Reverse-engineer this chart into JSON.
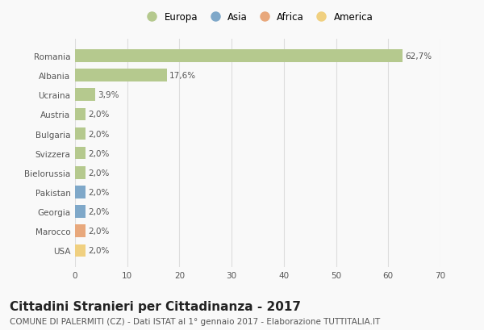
{
  "categories": [
    "Romania",
    "Albania",
    "Ucraina",
    "Austria",
    "Bulgaria",
    "Svizzera",
    "Bielorussia",
    "Pakistan",
    "Georgia",
    "Marocco",
    "USA"
  ],
  "values": [
    62.7,
    17.6,
    3.9,
    2.0,
    2.0,
    2.0,
    2.0,
    2.0,
    2.0,
    2.0,
    2.0
  ],
  "labels": [
    "62,7%",
    "17,6%",
    "3,9%",
    "2,0%",
    "2,0%",
    "2,0%",
    "2,0%",
    "2,0%",
    "2,0%",
    "2,0%",
    "2,0%"
  ],
  "colors": [
    "#b5c98e",
    "#b5c98e",
    "#b5c98e",
    "#b5c98e",
    "#b5c98e",
    "#b5c98e",
    "#b5c98e",
    "#7fa8c9",
    "#7fa8c9",
    "#e8a87c",
    "#f0d080"
  ],
  "continent_labels": [
    "Europa",
    "Asia",
    "Africa",
    "America"
  ],
  "continent_colors": [
    "#b5c98e",
    "#7fa8c9",
    "#e8a87c",
    "#f0d080"
  ],
  "xlim": [
    0,
    70
  ],
  "xticks": [
    0,
    10,
    20,
    30,
    40,
    50,
    60,
    70
  ],
  "title": "Cittadini Stranieri per Cittadinanza - 2017",
  "subtitle": "COMUNE DI PALERMITI (CZ) - Dati ISTAT al 1° gennaio 2017 - Elaborazione TUTTITALIA.IT",
  "bg_color": "#f9f9f9",
  "bar_height": 0.65,
  "grid_color": "#dddddd",
  "title_fontsize": 11,
  "subtitle_fontsize": 7.5,
  "label_fontsize": 7.5,
  "tick_fontsize": 7.5,
  "legend_fontsize": 8.5
}
